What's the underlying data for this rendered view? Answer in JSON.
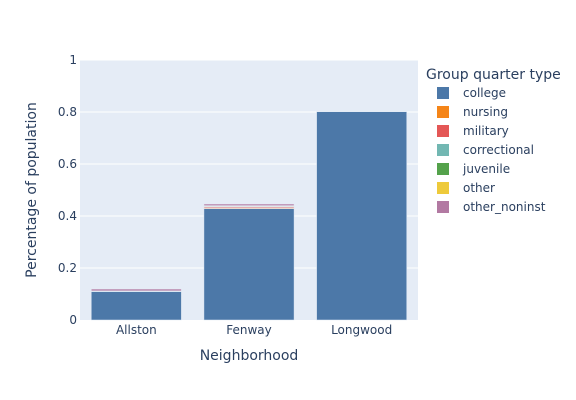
{
  "chart_data": {
    "type": "bar",
    "barmode": "stack",
    "categories": [
      "Allston",
      "Fenway",
      "Longwood"
    ],
    "xlabel": "Neighborhood",
    "ylabel": "Percentage of population",
    "ylim": [
      0,
      1
    ],
    "yticks": [
      "0",
      "0.2",
      "0.4",
      "0.6",
      "0.8",
      "1"
    ],
    "ytick_values": [
      0,
      0.2,
      0.4,
      0.6,
      0.8,
      1
    ],
    "grid": true,
    "legend": {
      "title": "Group quarter type",
      "placement": "right"
    },
    "series": [
      {
        "name": "college",
        "color": "#4c78a8",
        "values": [
          0.11,
          0.428,
          0.801
        ]
      },
      {
        "name": "nursing",
        "color": "#f58518",
        "values": [
          0.0,
          0.003,
          0.0
        ]
      },
      {
        "name": "military",
        "color": "#e45756",
        "values": [
          0.0,
          0.004,
          0.0
        ]
      },
      {
        "name": "correctional",
        "color": "#72b7b2",
        "values": [
          0.001,
          0.002,
          0.0
        ]
      },
      {
        "name": "juvenile",
        "color": "#54a24b",
        "values": [
          0.0,
          0.001,
          0.0
        ]
      },
      {
        "name": "other",
        "color": "#eeca3b",
        "values": [
          0.001,
          0.002,
          0.0
        ]
      },
      {
        "name": "other_noninst",
        "color": "#b279a2",
        "values": [
          0.007,
          0.006,
          0.0
        ]
      }
    ]
  }
}
